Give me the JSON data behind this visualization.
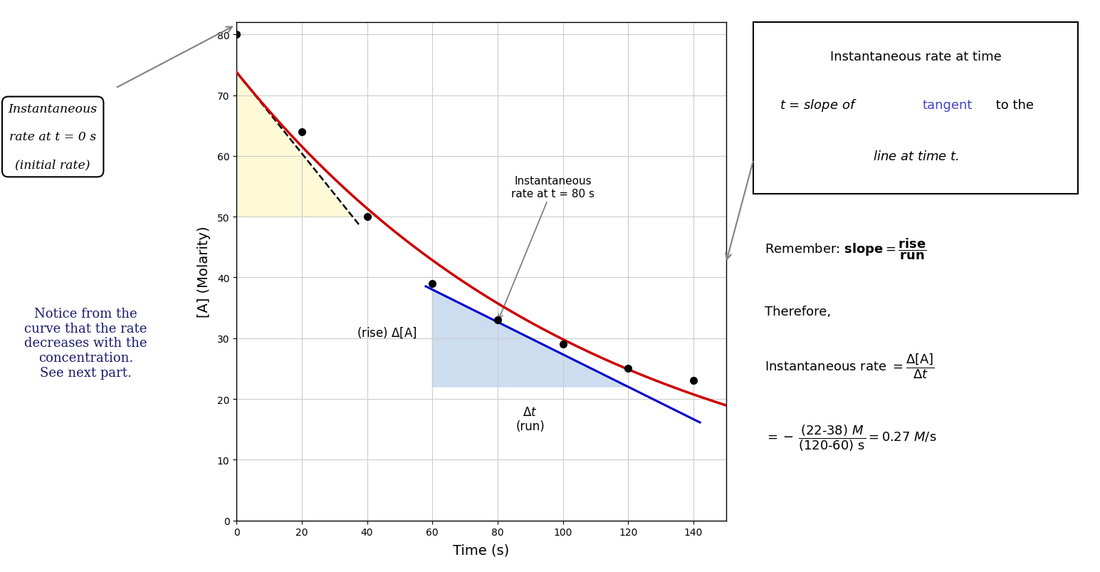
{
  "data_x": [
    0,
    20,
    40,
    60,
    80,
    100,
    120,
    140
  ],
  "data_y": [
    80,
    64,
    50,
    39,
    33,
    29,
    25,
    23
  ],
  "xlim": [
    0,
    150
  ],
  "ylim": [
    0,
    82
  ],
  "xlabel": "Time (s)",
  "ylabel": "[A] (Molarity)",
  "xticks": [
    0,
    20,
    40,
    60,
    80,
    100,
    120,
    140
  ],
  "yticks": [
    0,
    10,
    20,
    30,
    40,
    50,
    60,
    70,
    80
  ],
  "curve_color": "#cc0000",
  "tangent0_color": "#000000",
  "tangent80_color": "#0000cc",
  "yellow_color": "#fef9d7",
  "blue_fill_color": "#c5d8ee",
  "dot_color": "#000000",
  "grid_color": "#cccccc",
  "bg_color": "#ffffff",
  "tangent0_slope": -1.65,
  "tangent80_y1": 38.0,
  "tangent80_y2": 22.0,
  "tangent80_x1": 60,
  "tangent80_x2": 120,
  "notice_color": "#1a1a6e"
}
